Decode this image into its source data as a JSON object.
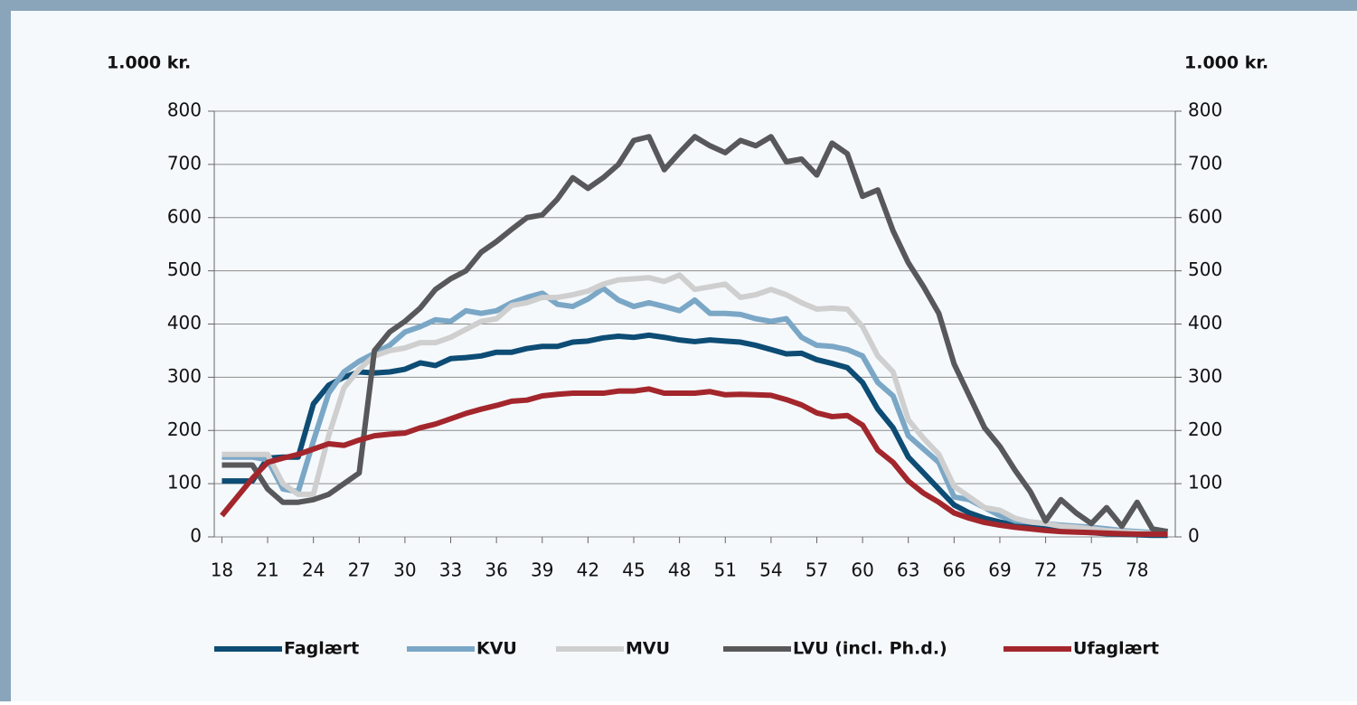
{
  "chart_data": {
    "type": "line",
    "y_label": "1.000 kr.",
    "y2_label": "1.000 kr.",
    "x": [
      18,
      19,
      20,
      21,
      22,
      23,
      24,
      25,
      26,
      27,
      28,
      29,
      30,
      31,
      32,
      33,
      34,
      35,
      36,
      37,
      38,
      39,
      40,
      41,
      42,
      43,
      44,
      45,
      46,
      47,
      48,
      49,
      50,
      51,
      52,
      53,
      54,
      55,
      56,
      57,
      58,
      59,
      60,
      61,
      62,
      63,
      64,
      65,
      66,
      67,
      68,
      69,
      70,
      71,
      72,
      73,
      74,
      75,
      76,
      77,
      78,
      79,
      80
    ],
    "xlim": [
      17.5,
      80.5
    ],
    "xticks": [
      18,
      21,
      24,
      27,
      30,
      33,
      36,
      39,
      42,
      45,
      48,
      51,
      54,
      57,
      60,
      63,
      66,
      69,
      72,
      75,
      78
    ],
    "ylim": [
      0,
      800
    ],
    "yticks": [
      0,
      100,
      200,
      300,
      400,
      500,
      600,
      700,
      800
    ],
    "y2lim": [
      0,
      800
    ],
    "y2ticks": [
      0,
      100,
      200,
      300,
      400,
      500,
      600,
      700,
      800
    ],
    "grid": true,
    "series": [
      {
        "name": "Faglært",
        "color": "#0d4c74",
        "values": [
          105,
          105,
          105,
          148,
          150,
          150,
          250,
          285,
          300,
          310,
          308,
          310,
          315,
          327,
          322,
          335,
          337,
          340,
          347,
          347,
          354,
          358,
          358,
          366,
          368,
          374,
          377,
          375,
          379,
          375,
          370,
          367,
          370,
          368,
          366,
          360,
          352,
          344,
          345,
          333,
          326,
          318,
          290,
          240,
          205,
          150,
          120,
          90,
          60,
          45,
          35,
          28,
          22,
          18,
          15,
          12,
          10,
          8,
          6,
          5,
          4,
          3,
          3
        ]
      },
      {
        "name": "KVU",
        "color": "#7ba7c6",
        "values": [
          150,
          150,
          150,
          145,
          90,
          85,
          180,
          270,
          310,
          330,
          345,
          360,
          385,
          395,
          408,
          405,
          425,
          420,
          425,
          440,
          450,
          458,
          437,
          433,
          447,
          467,
          445,
          433,
          440,
          433,
          425,
          445,
          420,
          420,
          418,
          410,
          405,
          410,
          375,
          360,
          358,
          352,
          340,
          290,
          265,
          190,
          165,
          140,
          75,
          70,
          55,
          40,
          30,
          28,
          25,
          22,
          20,
          18,
          15,
          12,
          10,
          8,
          8
        ]
      },
      {
        "name": "MVU",
        "color": "#cfcfcf",
        "values": [
          155,
          155,
          155,
          155,
          100,
          80,
          80,
          190,
          280,
          315,
          340,
          350,
          355,
          365,
          365,
          375,
          390,
          405,
          410,
          435,
          440,
          450,
          450,
          455,
          462,
          475,
          483,
          485,
          487,
          480,
          492,
          465,
          470,
          475,
          450,
          455,
          465,
          455,
          440,
          428,
          430,
          428,
          395,
          340,
          310,
          220,
          185,
          155,
          95,
          75,
          55,
          50,
          35,
          28,
          25,
          20,
          18,
          15,
          12,
          10,
          8,
          6,
          5
        ]
      },
      {
        "name": "LVU (incl. Ph.d.)",
        "color": "#58585a",
        "values": [
          135,
          135,
          135,
          90,
          65,
          65,
          70,
          80,
          100,
          120,
          350,
          385,
          405,
          430,
          465,
          485,
          500,
          535,
          555,
          578,
          600,
          605,
          635,
          675,
          655,
          675,
          700,
          745,
          752,
          690,
          722,
          752,
          735,
          722,
          745,
          735,
          752,
          705,
          710,
          680,
          740,
          720,
          640,
          652,
          575,
          515,
          470,
          420,
          325,
          265,
          205,
          170,
          125,
          85,
          30,
          70,
          45,
          25,
          55,
          20,
          65,
          15,
          10
        ]
      },
      {
        "name": "Ufaglært",
        "color": "#a3262c",
        "values": [
          40,
          75,
          110,
          140,
          148,
          155,
          165,
          175,
          172,
          182,
          190,
          193,
          195,
          205,
          212,
          222,
          232,
          240,
          247,
          255,
          257,
          265,
          268,
          270,
          270,
          270,
          274,
          274,
          278,
          270,
          270,
          270,
          273,
          267,
          268,
          267,
          266,
          258,
          248,
          233,
          226,
          228,
          210,
          163,
          140,
          105,
          82,
          65,
          45,
          35,
          27,
          22,
          18,
          15,
          12,
          10,
          9,
          8,
          7,
          6,
          5,
          5,
          5
        ]
      }
    ]
  }
}
